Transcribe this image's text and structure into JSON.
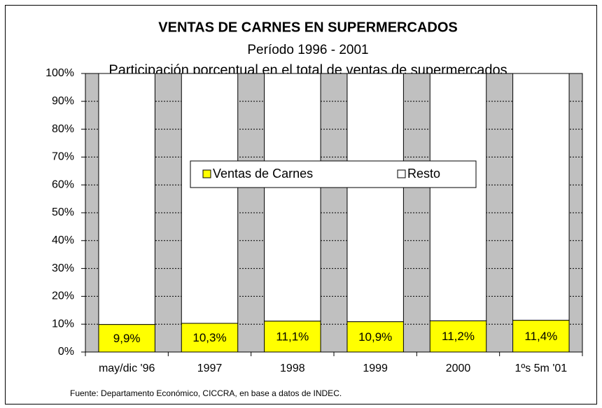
{
  "chart_data": {
    "type": "stacked_bar",
    "title": "VENTAS DE CARNES  EN SUPERMERCADOS",
    "subtitle": "Período 1996 - 2001",
    "subtitle2": "Participación porcentual en el total de ventas de supermercados",
    "source": "Fuente: Departamento Económico, CICCRA, en base a datos de INDEC.",
    "categories": [
      "may/dic '96",
      "1997",
      "1998",
      "1999",
      "2000",
      "1ºs 5m '01"
    ],
    "series": [
      {
        "name": "Ventas de Carnes",
        "color": "#ffff00",
        "values": [
          9.9,
          10.3,
          11.1,
          10.9,
          11.2,
          11.4
        ],
        "value_labels": [
          "9,9%",
          "10,3%",
          "11,1%",
          "10,9%",
          "11,2%",
          "11,4%"
        ]
      },
      {
        "name": "Resto",
        "color": "#ffffff",
        "values": [
          90.1,
          89.7,
          88.9,
          89.1,
          88.8,
          88.6
        ]
      }
    ],
    "ylim": [
      0,
      100
    ],
    "yticks": [
      {
        "value": 0,
        "label": "0%"
      },
      {
        "value": 10,
        "label": "10%"
      },
      {
        "value": 20,
        "label": "20%"
      },
      {
        "value": 30,
        "label": "30%"
      },
      {
        "value": 40,
        "label": "40%"
      },
      {
        "value": 50,
        "label": "50%"
      },
      {
        "value": 60,
        "label": "60%"
      },
      {
        "value": 70,
        "label": "70%"
      },
      {
        "value": 80,
        "label": "80%"
      },
      {
        "value": 90,
        "label": "90%"
      },
      {
        "value": 100,
        "label": "100%"
      }
    ],
    "grid": true,
    "plot_background": "#c0c0c0",
    "legend": "center"
  }
}
